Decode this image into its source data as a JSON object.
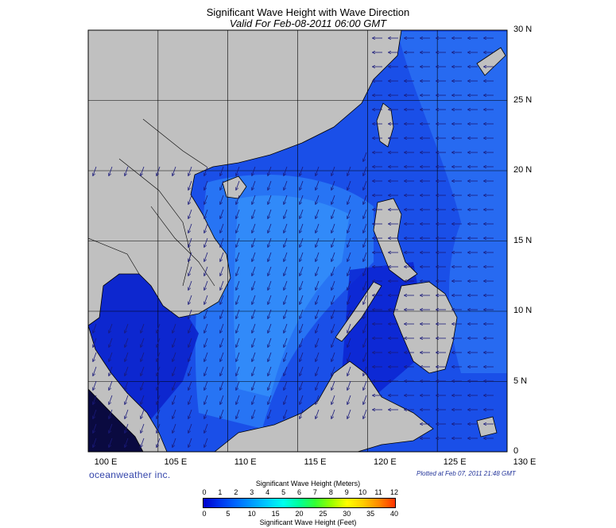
{
  "title": "Significant Wave Height with Wave Direction",
  "subtitle": "Valid For Feb-08-2011 06:00 GMT",
  "latitude_labels": [
    "30 N",
    "25 N",
    "20 N",
    "15 N",
    "10 N",
    "5 N",
    "0"
  ],
  "longitude_labels": [
    "100 E",
    "105 E",
    "110 E",
    "115 E",
    "120 E",
    "125 E",
    "130 E"
  ],
  "brand": "oceanweather inc.",
  "plotted_note": "Plotted at Feb 07, 2011 21:48 GMT",
  "legend": {
    "meters_title": "Significant Wave Height (Meters)",
    "meters_ticks": [
      "0",
      "1",
      "2",
      "3",
      "4",
      "5",
      "6",
      "7",
      "8",
      "9",
      "10",
      "11",
      "12"
    ],
    "feet_title": "Significant Wave Height (Feet)",
    "feet_ticks": [
      "0",
      "5",
      "10",
      "15",
      "20",
      "25",
      "30",
      "35",
      "40"
    ],
    "colors": [
      "#0000cc",
      "#0033ee",
      "#0066ff",
      "#0099ff",
      "#00ccff",
      "#00ffee",
      "#00ff99",
      "#33ff33",
      "#99ff00",
      "#ffff00",
      "#ffcc00",
      "#ff8800",
      "#ff3300"
    ]
  },
  "map": {
    "land_color": "#c0c0c0",
    "ocean_colors": [
      "#0a18c8",
      "#1236e0",
      "#1a5cf0",
      "#2277f7"
    ]
  }
}
